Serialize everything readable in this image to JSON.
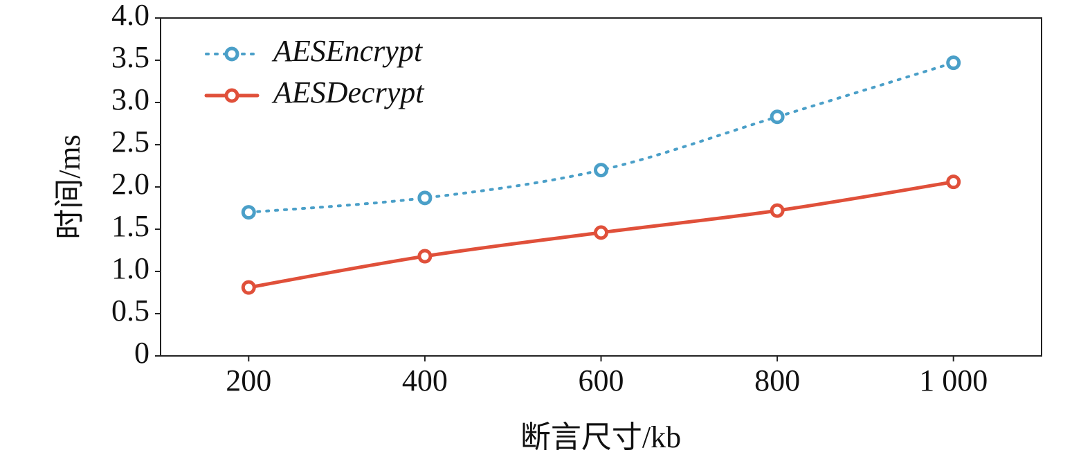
{
  "chart_data": {
    "type": "line",
    "x_label": "断言尺寸/kb",
    "y_label": "时间/ms",
    "x": [
      200,
      400,
      600,
      800,
      1000
    ],
    "series": [
      {
        "name": "AESEncrypt",
        "color": "#4a9fc8",
        "style": "dotted",
        "values": [
          1.7,
          1.87,
          2.2,
          2.83,
          3.47
        ]
      },
      {
        "name": "AESDecrypt",
        "color": "#e0503a",
        "style": "solid",
        "values": [
          0.81,
          1.18,
          1.46,
          1.72,
          2.06
        ]
      }
    ],
    "xlim": [
      100,
      1100
    ],
    "xticks": [
      200,
      400,
      600,
      800,
      {
        "value": 1000,
        "label": "1 000"
      }
    ],
    "ylim": [
      0,
      4
    ],
    "yticks": [
      0,
      0.5,
      {
        "value": 1,
        "label": "1.0"
      },
      1.5,
      {
        "value": 2,
        "label": "2.0"
      },
      2.5,
      {
        "value": 3,
        "label": "3.0"
      },
      3.5,
      {
        "value": 4,
        "label": "4.0"
      }
    ],
    "grid": false,
    "legend": "upper-left"
  }
}
